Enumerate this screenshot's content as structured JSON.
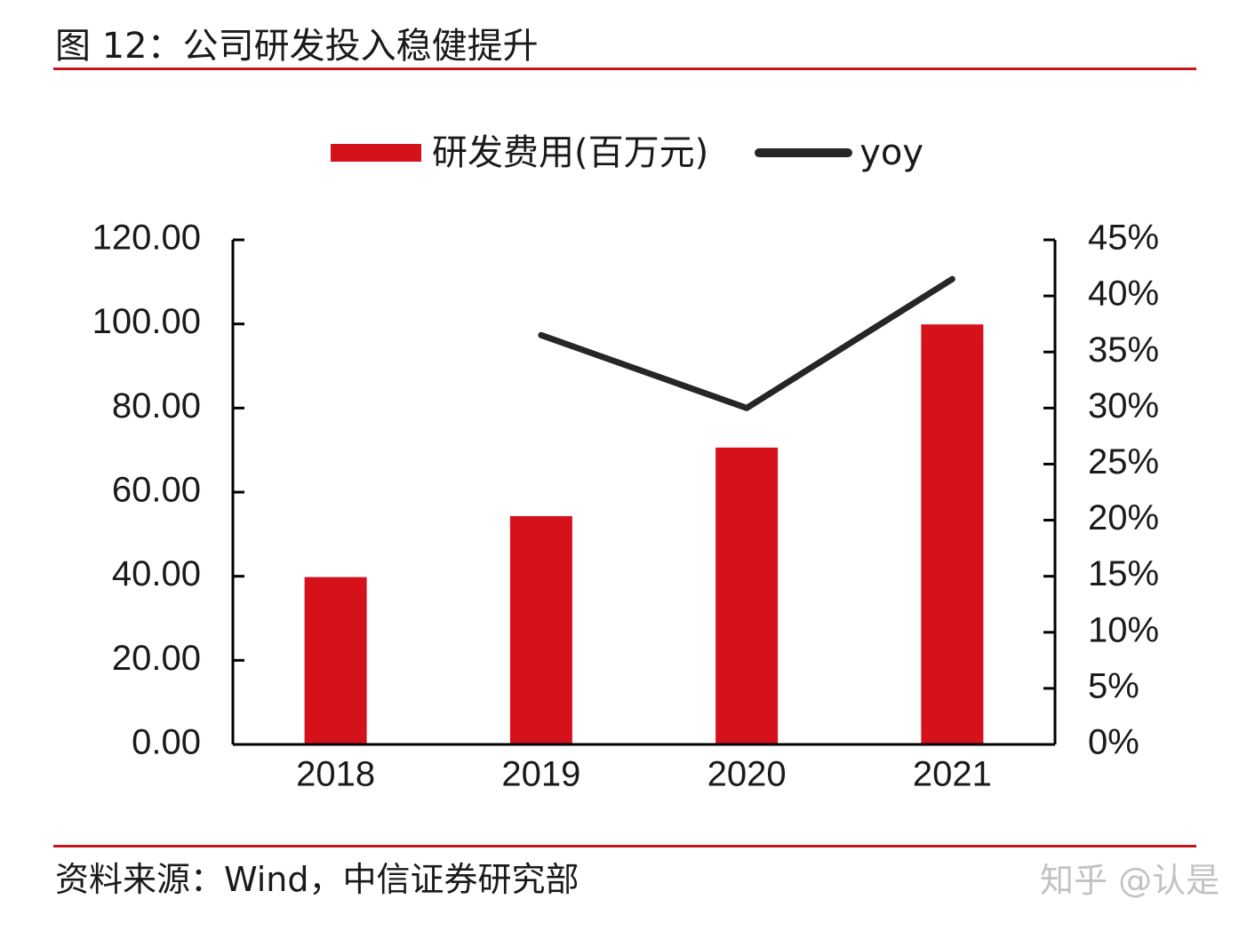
{
  "figure": {
    "title": "图 12：公司研发投入稳健提升",
    "source": "资料来源：Wind，中信证券研究部",
    "watermark": "知乎 @认是",
    "rule_color": "#c4161c"
  },
  "chart_data": {
    "type": "bar",
    "categories": [
      "2018",
      "2019",
      "2020",
      "2021"
    ],
    "series": [
      {
        "name": "研发费用(百万元)",
        "type": "bar",
        "axis": "left",
        "color": "#d5121b",
        "values": [
          39.8,
          54.3,
          70.6,
          99.9
        ]
      },
      {
        "name": "yoy",
        "type": "line",
        "axis": "right",
        "color": "#262626",
        "values": [
          null,
          0.365,
          0.3,
          0.415
        ]
      }
    ],
    "ylim": [
      0,
      120
    ],
    "y_ticks": [
      0,
      20,
      40,
      60,
      80,
      100,
      120
    ],
    "y_tick_labels": [
      "0.00",
      "20.00",
      "40.00",
      "60.00",
      "80.00",
      "100.00",
      "120.00"
    ],
    "y2lim": [
      0,
      0.45
    ],
    "y2_ticks": [
      0,
      0.05,
      0.1,
      0.15,
      0.2,
      0.25,
      0.3,
      0.35,
      0.4,
      0.45
    ],
    "y2_tick_labels": [
      "0%",
      "5%",
      "10%",
      "15%",
      "20%",
      "25%",
      "30%",
      "35%",
      "40%",
      "45%"
    ],
    "xlabel": "",
    "ylabel": "",
    "grid": false,
    "legend_position": "top-center"
  }
}
